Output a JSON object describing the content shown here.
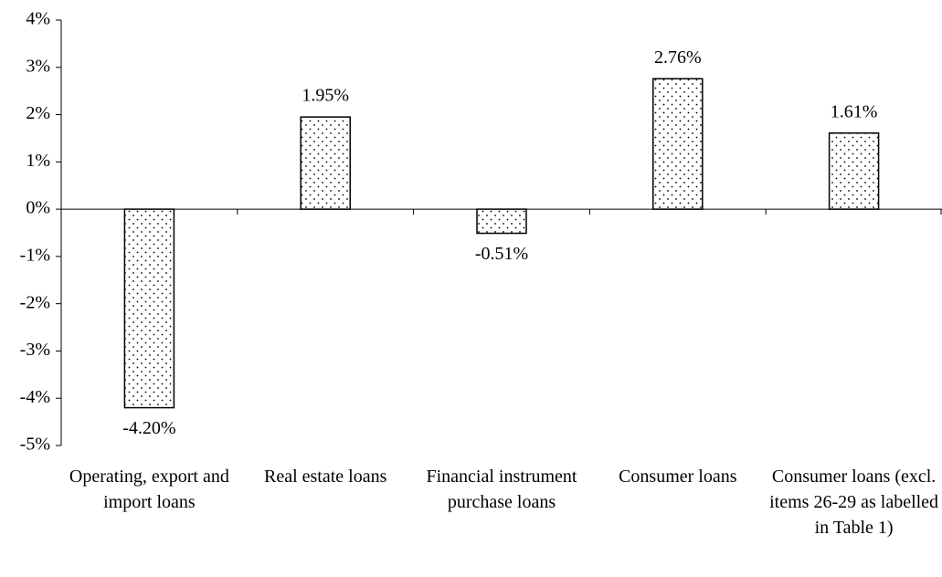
{
  "chart_data": {
    "type": "bar",
    "categories": [
      "Operating, export and import loans",
      "Real estate loans",
      "Financial instrument purchase loans",
      "Consumer loans",
      "Consumer loans (excl. items 26-29 as labelled in Table 1)"
    ],
    "values": [
      -4.2,
      1.95,
      -0.51,
      2.76,
      1.61
    ],
    "value_labels": [
      "-4.20%",
      "1.95%",
      "-0.51%",
      "2.76%",
      "1.61%"
    ],
    "color": "#ffffff",
    "ylim": [
      -5,
      4
    ],
    "yticks": [
      {
        "value": -5,
        "label": "-5%"
      },
      {
        "value": -4,
        "label": "-4%"
      },
      {
        "value": -3,
        "label": "-3%"
      },
      {
        "value": -2,
        "label": "-2%"
      },
      {
        "value": -1,
        "label": "-1%"
      },
      {
        "value": 0,
        "label": "0%"
      },
      {
        "value": 1,
        "label": "1%"
      },
      {
        "value": 2,
        "label": "2%"
      },
      {
        "value": 3,
        "label": "3%"
      },
      {
        "value": 4,
        "label": "4%"
      }
    ],
    "grid": false
  }
}
